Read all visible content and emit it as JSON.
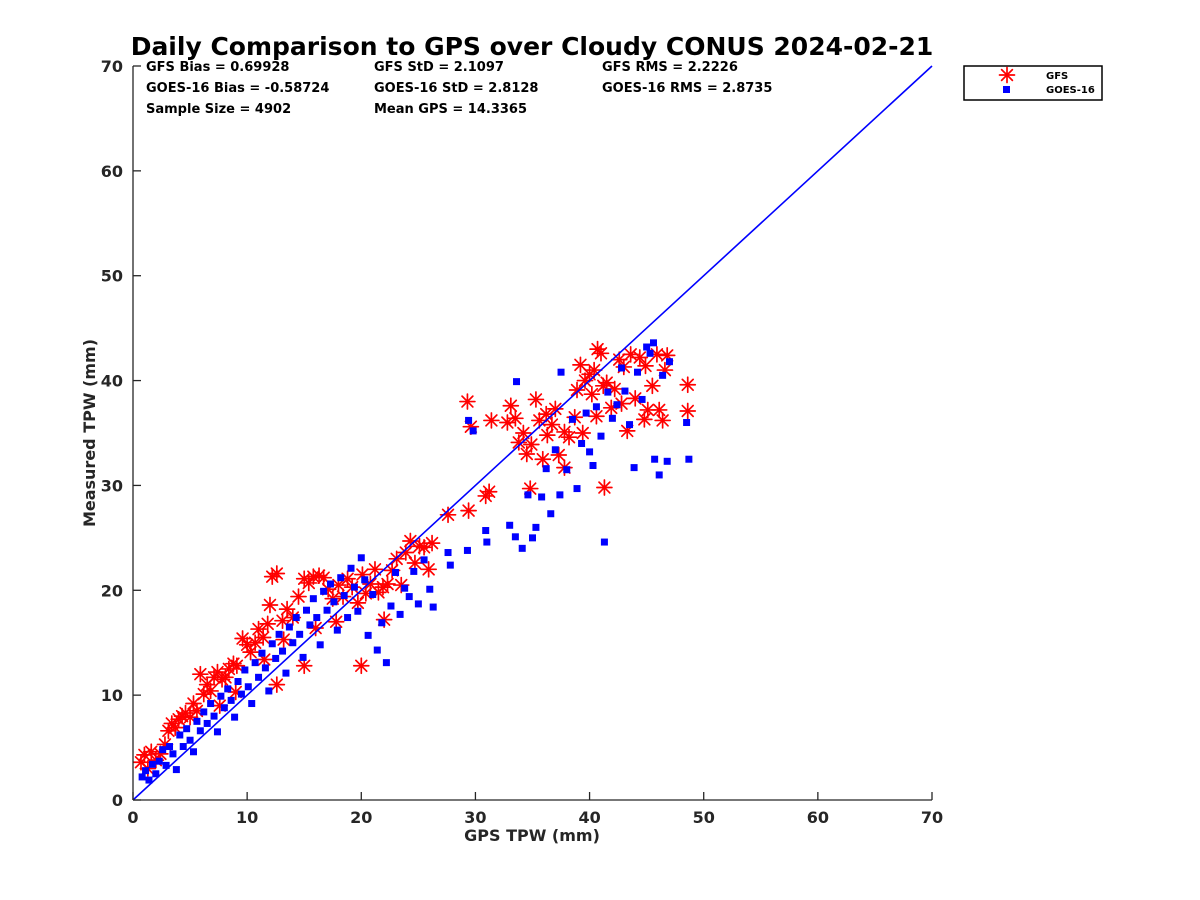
{
  "chart_data": {
    "type": "scatter",
    "title": "Daily Comparison to GPS over Cloudy CONUS 2024-02-21",
    "xlabel": "GPS TPW (mm)",
    "ylabel": "Measured TPW (mm)",
    "xlim": [
      0,
      70
    ],
    "ylim": [
      0,
      70
    ],
    "xticks": [
      0,
      10,
      20,
      30,
      40,
      50,
      60,
      70
    ],
    "yticks": [
      0,
      10,
      20,
      30,
      40,
      50,
      60,
      70
    ],
    "legend_position": "outside-top-right",
    "reference_line": {
      "name": "1:1 line",
      "x": [
        0,
        70
      ],
      "y": [
        0,
        70
      ],
      "color": "#0000ff"
    },
    "stats": [
      {
        "key": "gfs_bias",
        "text": "GFS Bias = 0.69928"
      },
      {
        "key": "gfs_std",
        "text": "GFS StD = 2.1097"
      },
      {
        "key": "gfs_rms",
        "text": "GFS RMS = 2.2226"
      },
      {
        "key": "goes_bias",
        "text": "GOES-16 Bias = -0.58724"
      },
      {
        "key": "goes_std",
        "text": "GOES-16 StD = 2.8128"
      },
      {
        "key": "goes_rms",
        "text": "GOES-16 RMS = 2.8735"
      },
      {
        "key": "sample_size",
        "text": "Sample Size = 4902"
      },
      {
        "key": "mean_gps",
        "text": "Mean GPS = 14.3365"
      }
    ],
    "series": [
      {
        "name": "GFS",
        "marker": "asterisk",
        "color": "#ff0000",
        "points": [
          [
            0.7,
            3.6
          ],
          [
            1.0,
            4.3
          ],
          [
            1.3,
            3.0
          ],
          [
            1.6,
            4.6
          ],
          [
            2.0,
            3.8
          ],
          [
            2.4,
            4.4
          ],
          [
            2.8,
            5.3
          ],
          [
            3.1,
            6.6
          ],
          [
            3.4,
            7.3
          ],
          [
            3.7,
            6.9
          ],
          [
            4.0,
            7.7
          ],
          [
            4.3,
            8.0
          ],
          [
            4.6,
            8.3
          ],
          [
            5.0,
            7.9
          ],
          [
            5.3,
            9.2
          ],
          [
            5.6,
            8.5
          ],
          [
            5.9,
            12.0
          ],
          [
            6.2,
            10.1
          ],
          [
            6.5,
            11.0
          ],
          [
            6.8,
            10.4
          ],
          [
            7.1,
            11.7
          ],
          [
            7.4,
            12.2
          ],
          [
            7.8,
            11.5
          ],
          [
            8.1,
            11.7
          ],
          [
            8.4,
            12.5
          ],
          [
            8.8,
            13.0
          ],
          [
            9.1,
            12.8
          ],
          [
            9.6,
            15.4
          ],
          [
            10.0,
            14.8
          ],
          [
            10.3,
            14.1
          ],
          [
            10.7,
            15.0
          ],
          [
            11.0,
            16.3
          ],
          [
            11.4,
            15.5
          ],
          [
            11.8,
            16.8
          ],
          [
            12.2,
            21.3
          ],
          [
            12.6,
            21.6
          ],
          [
            12.0,
            18.6
          ],
          [
            13.1,
            17.1
          ],
          [
            13.5,
            18.2
          ],
          [
            14.0,
            17.4
          ],
          [
            14.5,
            19.4
          ],
          [
            15.0,
            21.1
          ],
          [
            15.4,
            20.7
          ],
          [
            15.8,
            21.3
          ],
          [
            16.3,
            21.4
          ],
          [
            16.7,
            21.2
          ],
          [
            17.1,
            20.1
          ],
          [
            17.5,
            19.2
          ],
          [
            18.0,
            20.5
          ],
          [
            18.4,
            19.4
          ],
          [
            18.8,
            21.1
          ],
          [
            19.2,
            20.3
          ],
          [
            19.7,
            18.8
          ],
          [
            20.1,
            21.5
          ],
          [
            20.4,
            19.7
          ],
          [
            20.8,
            20.6
          ],
          [
            21.2,
            22.0
          ],
          [
            21.5,
            19.8
          ],
          [
            21.9,
            20.3
          ],
          [
            22.3,
            20.6
          ],
          [
            22.7,
            21.9
          ],
          [
            23.1,
            23.0
          ],
          [
            23.5,
            20.5
          ],
          [
            23.9,
            23.6
          ],
          [
            24.3,
            24.7
          ],
          [
            24.7,
            22.6
          ],
          [
            25.1,
            24.2
          ],
          [
            25.5,
            24.1
          ],
          [
            25.9,
            22.0
          ],
          [
            26.2,
            24.5
          ],
          [
            7.6,
            9.0
          ],
          [
            9.0,
            10.3
          ],
          [
            11.5,
            13.4
          ],
          [
            13.2,
            15.3
          ],
          [
            16.0,
            16.4
          ],
          [
            17.8,
            17.0
          ],
          [
            20.0,
            12.8
          ],
          [
            22.0,
            17.2
          ],
          [
            15.0,
            12.8
          ],
          [
            12.6,
            11.0
          ],
          [
            27.6,
            27.2
          ],
          [
            29.4,
            27.6
          ],
          [
            29.3,
            38.0
          ],
          [
            29.6,
            35.6
          ],
          [
            30.9,
            29.0
          ],
          [
            31.2,
            29.4
          ],
          [
            31.4,
            36.2
          ],
          [
            32.8,
            36.0
          ],
          [
            33.1,
            37.6
          ],
          [
            33.5,
            36.4
          ],
          [
            33.8,
            34.1
          ],
          [
            34.2,
            35.0
          ],
          [
            34.5,
            33.0
          ],
          [
            34.9,
            33.9
          ],
          [
            35.3,
            38.2
          ],
          [
            35.6,
            36.2
          ],
          [
            35.9,
            32.5
          ],
          [
            36.3,
            34.8
          ],
          [
            36.7,
            35.8
          ],
          [
            37.0,
            37.3
          ],
          [
            37.3,
            32.9
          ],
          [
            37.8,
            35.1
          ],
          [
            38.2,
            34.6
          ],
          [
            38.7,
            36.5
          ],
          [
            38.9,
            39.1
          ],
          [
            39.2,
            41.5
          ],
          [
            39.6,
            40.0
          ],
          [
            40.0,
            40.6
          ],
          [
            40.2,
            38.7
          ],
          [
            40.4,
            41.0
          ],
          [
            40.7,
            43.0
          ],
          [
            41.0,
            42.6
          ],
          [
            41.2,
            39.5
          ],
          [
            41.5,
            39.8
          ],
          [
            41.9,
            37.4
          ],
          [
            42.2,
            39.2
          ],
          [
            42.6,
            42.0
          ],
          [
            43.0,
            41.3
          ],
          [
            43.3,
            35.2
          ],
          [
            43.6,
            42.5
          ],
          [
            44.0,
            38.3
          ],
          [
            44.4,
            42.2
          ],
          [
            44.8,
            36.3
          ],
          [
            45.1,
            37.2
          ],
          [
            45.5,
            39.5
          ],
          [
            45.9,
            42.5
          ],
          [
            46.1,
            37.2
          ],
          [
            46.4,
            36.2
          ],
          [
            46.8,
            42.4
          ],
          [
            46.6,
            41.0
          ],
          [
            48.6,
            39.6
          ],
          [
            48.6,
            37.1
          ],
          [
            41.3,
            29.8
          ],
          [
            34.8,
            29.7
          ],
          [
            40.6,
            36.6
          ],
          [
            39.4,
            35.0
          ],
          [
            42.8,
            37.8
          ],
          [
            44.9,
            41.4
          ],
          [
            36.2,
            36.8
          ],
          [
            37.8,
            31.7
          ]
        ]
      },
      {
        "name": "GOES-16",
        "marker": "square",
        "color": "#0000ff",
        "points": [
          [
            0.8,
            2.2
          ],
          [
            1.1,
            2.8
          ],
          [
            1.4,
            1.9
          ],
          [
            1.7,
            3.4
          ],
          [
            2.0,
            2.5
          ],
          [
            2.3,
            3.7
          ],
          [
            2.6,
            4.8
          ],
          [
            2.9,
            3.3
          ],
          [
            3.2,
            5.1
          ],
          [
            3.5,
            4.4
          ],
          [
            3.8,
            2.9
          ],
          [
            4.1,
            6.2
          ],
          [
            4.4,
            5.1
          ],
          [
            4.7,
            6.8
          ],
          [
            5.0,
            5.7
          ],
          [
            5.3,
            4.6
          ],
          [
            5.6,
            7.5
          ],
          [
            5.9,
            6.6
          ],
          [
            6.2,
            8.4
          ],
          [
            6.5,
            7.3
          ],
          [
            6.8,
            9.2
          ],
          [
            7.1,
            8.0
          ],
          [
            7.4,
            6.5
          ],
          [
            7.7,
            9.9
          ],
          [
            8.0,
            8.8
          ],
          [
            8.3,
            10.6
          ],
          [
            8.6,
            9.5
          ],
          [
            8.9,
            7.9
          ],
          [
            9.2,
            11.3
          ],
          [
            9.5,
            10.1
          ],
          [
            9.8,
            12.4
          ],
          [
            10.1,
            10.8
          ],
          [
            10.4,
            9.2
          ],
          [
            10.7,
            13.1
          ],
          [
            11.0,
            11.7
          ],
          [
            11.3,
            14.0
          ],
          [
            11.6,
            12.6
          ],
          [
            11.9,
            10.4
          ],
          [
            12.2,
            14.9
          ],
          [
            12.5,
            13.5
          ],
          [
            12.8,
            15.8
          ],
          [
            13.1,
            14.2
          ],
          [
            13.4,
            12.1
          ],
          [
            13.7,
            16.5
          ],
          [
            14.0,
            15.0
          ],
          [
            14.3,
            17.4
          ],
          [
            14.6,
            15.8
          ],
          [
            14.9,
            13.6
          ],
          [
            15.2,
            18.1
          ],
          [
            15.5,
            16.7
          ],
          [
            15.8,
            19.2
          ],
          [
            16.1,
            17.4
          ],
          [
            16.4,
            14.8
          ],
          [
            16.7,
            19.9
          ],
          [
            17.0,
            18.1
          ],
          [
            17.3,
            20.6
          ],
          [
            17.6,
            18.9
          ],
          [
            17.9,
            16.2
          ],
          [
            18.2,
            21.2
          ],
          [
            18.5,
            19.5
          ],
          [
            18.8,
            17.4
          ],
          [
            19.1,
            22.1
          ],
          [
            19.4,
            20.3
          ],
          [
            19.7,
            18.0
          ],
          [
            20.0,
            23.1
          ],
          [
            20.3,
            21.0
          ],
          [
            20.6,
            15.7
          ],
          [
            21.0,
            19.6
          ],
          [
            21.4,
            14.3
          ],
          [
            21.8,
            16.9
          ],
          [
            22.2,
            13.1
          ],
          [
            22.6,
            18.5
          ],
          [
            23.0,
            21.7
          ],
          [
            23.4,
            17.7
          ],
          [
            23.8,
            20.2
          ],
          [
            24.2,
            19.4
          ],
          [
            24.6,
            21.8
          ],
          [
            25.0,
            18.7
          ],
          [
            25.5,
            22.9
          ],
          [
            26.0,
            20.1
          ],
          [
            26.3,
            18.4
          ],
          [
            27.6,
            23.6
          ],
          [
            27.8,
            22.4
          ],
          [
            29.3,
            23.8
          ],
          [
            29.4,
            36.2
          ],
          [
            29.8,
            35.2
          ],
          [
            30.9,
            25.7
          ],
          [
            31.0,
            24.6
          ],
          [
            33.0,
            26.2
          ],
          [
            33.5,
            25.1
          ],
          [
            33.6,
            39.9
          ],
          [
            34.1,
            24.0
          ],
          [
            34.6,
            29.1
          ],
          [
            35.0,
            25.0
          ],
          [
            35.3,
            26.0
          ],
          [
            35.8,
            28.9
          ],
          [
            36.2,
            31.6
          ],
          [
            36.6,
            27.3
          ],
          [
            37.0,
            33.4
          ],
          [
            37.4,
            29.1
          ],
          [
            37.5,
            40.8
          ],
          [
            38.0,
            31.5
          ],
          [
            38.5,
            36.3
          ],
          [
            38.9,
            29.7
          ],
          [
            39.3,
            34.0
          ],
          [
            39.7,
            36.9
          ],
          [
            40.0,
            33.2
          ],
          [
            40.3,
            31.9
          ],
          [
            40.6,
            37.5
          ],
          [
            41.0,
            34.7
          ],
          [
            41.3,
            24.6
          ],
          [
            41.6,
            38.9
          ],
          [
            42.0,
            36.4
          ],
          [
            42.4,
            37.7
          ],
          [
            42.8,
            41.2
          ],
          [
            43.1,
            39.0
          ],
          [
            43.5,
            35.8
          ],
          [
            43.9,
            31.7
          ],
          [
            44.2,
            40.8
          ],
          [
            44.6,
            38.2
          ],
          [
            45.0,
            43.2
          ],
          [
            45.3,
            42.6
          ],
          [
            45.7,
            32.5
          ],
          [
            46.1,
            31.0
          ],
          [
            46.4,
            40.5
          ],
          [
            46.8,
            32.3
          ],
          [
            47.0,
            41.8
          ],
          [
            48.7,
            32.5
          ],
          [
            48.5,
            36.0
          ],
          [
            45.6,
            43.6
          ]
        ]
      }
    ]
  }
}
